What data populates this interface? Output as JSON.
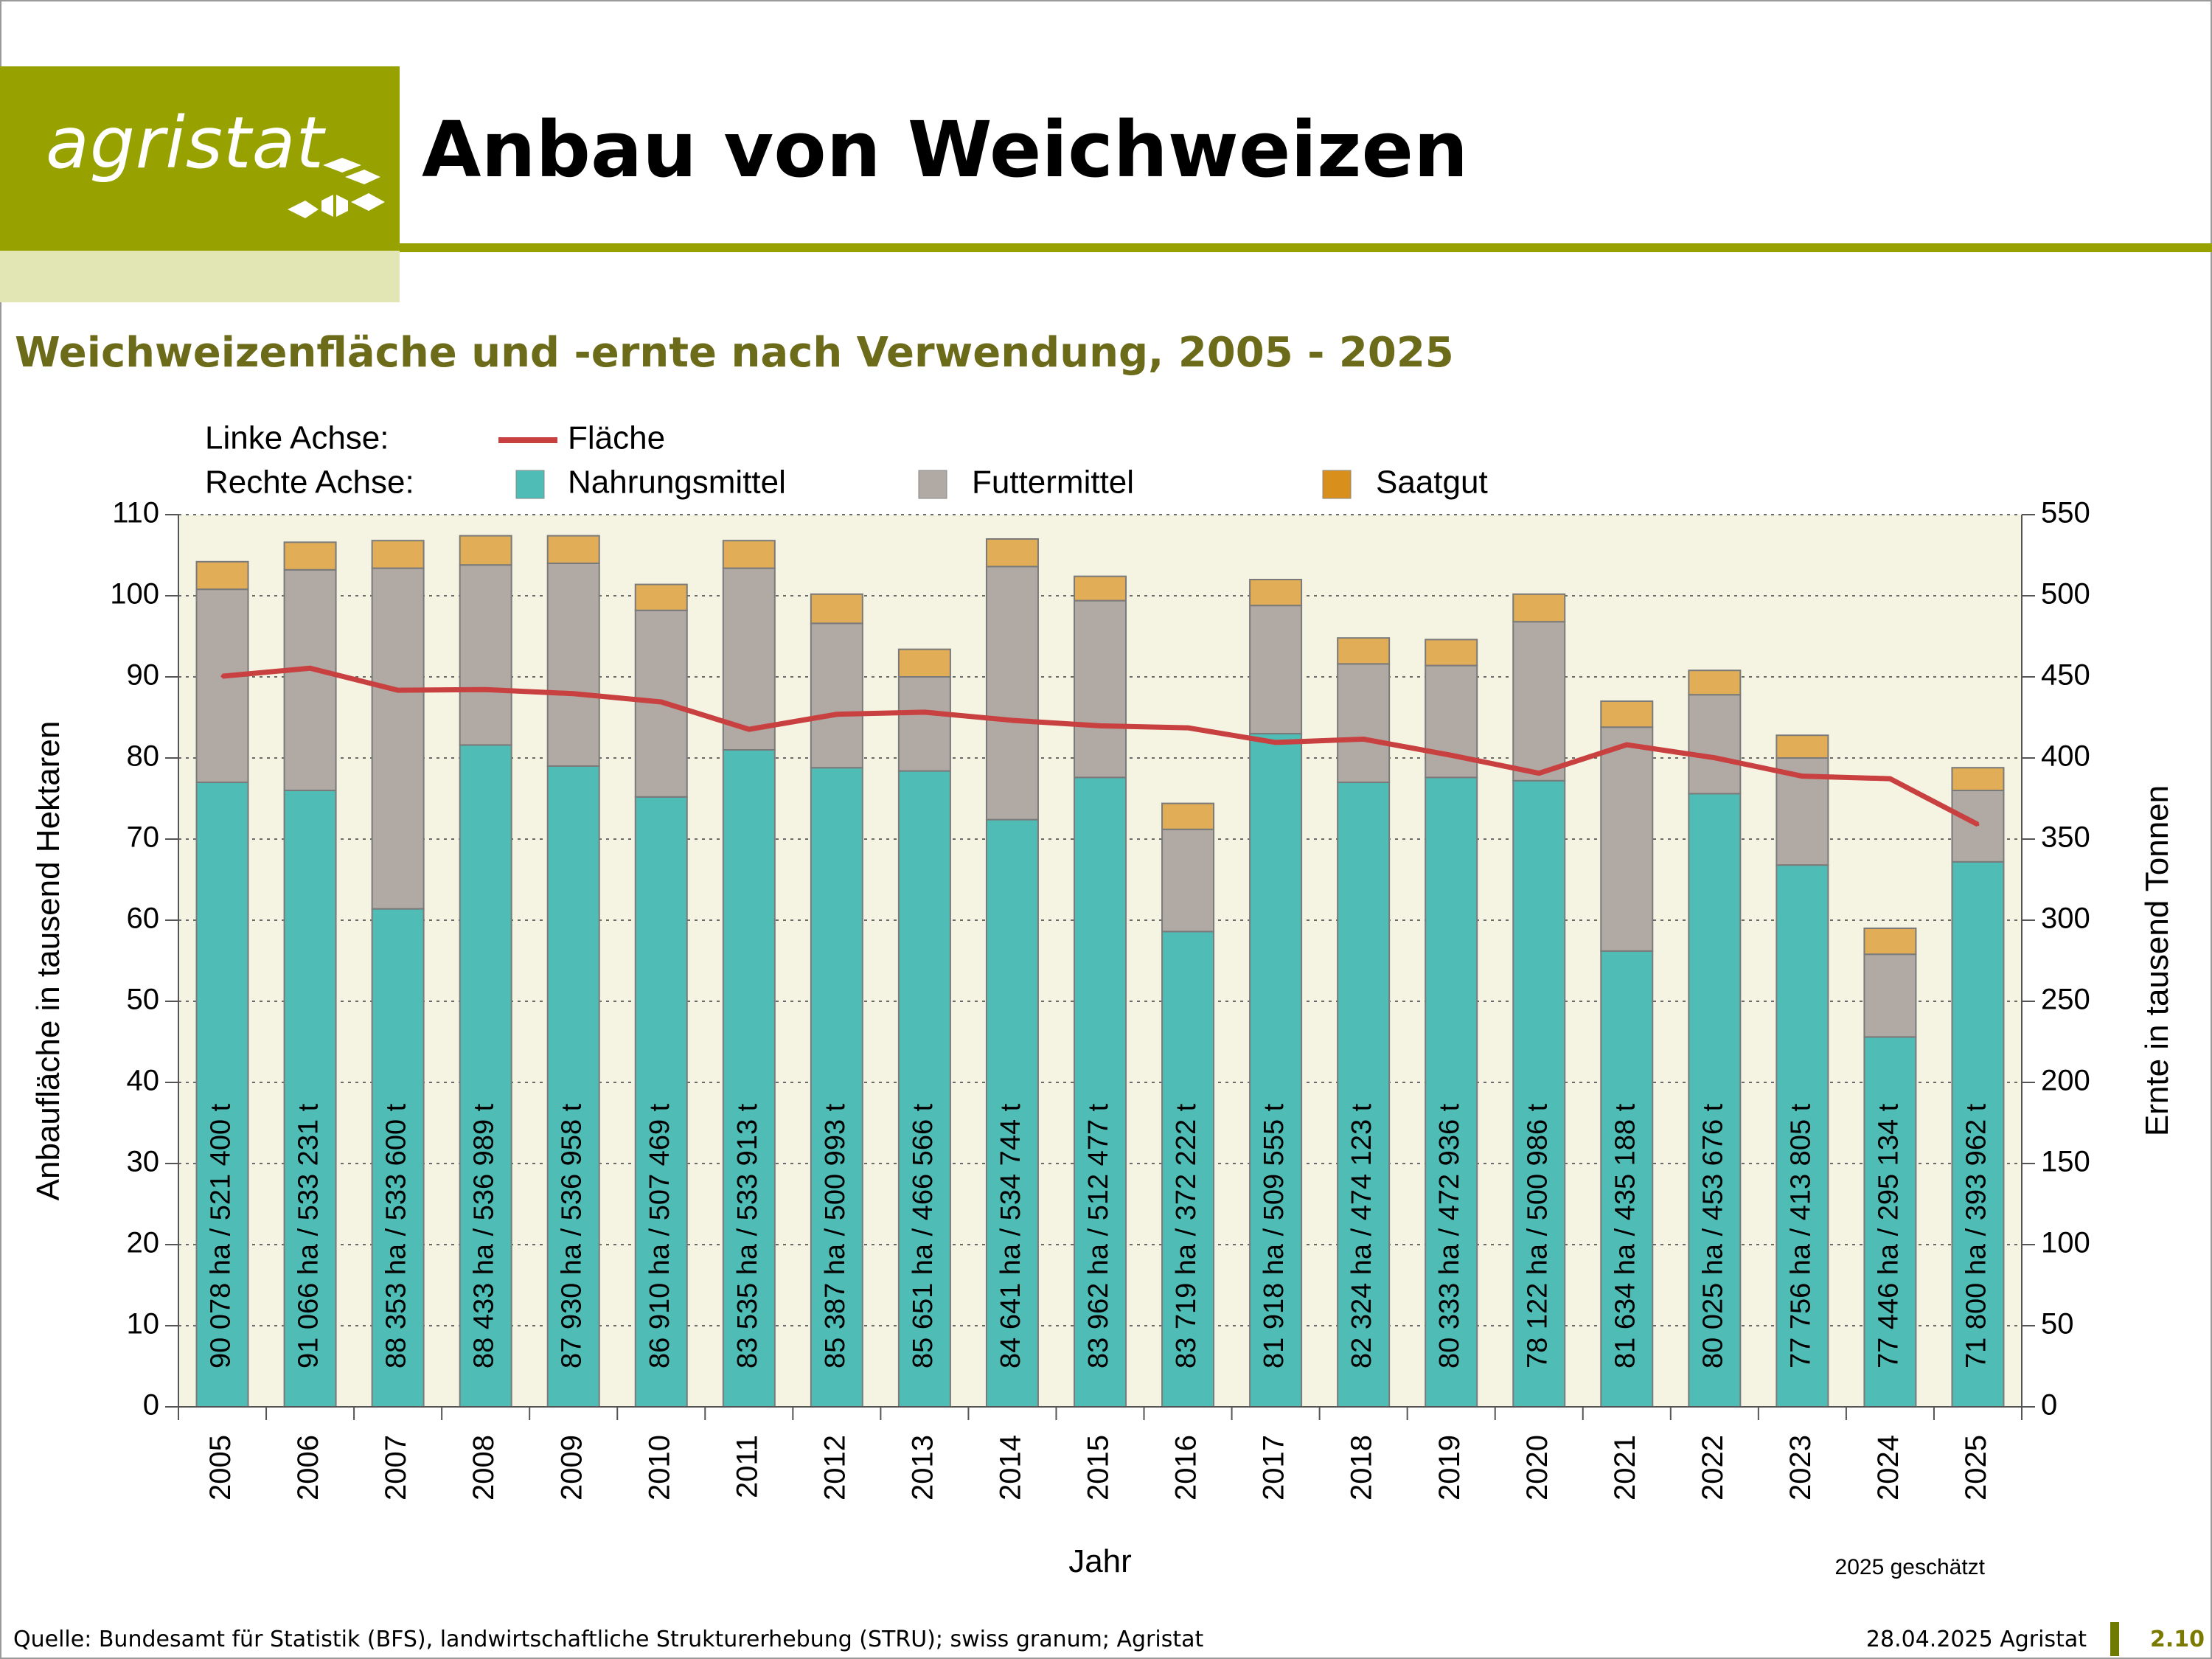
{
  "header": {
    "logo_text": "agristat",
    "title": "Anbau von Weichweizen"
  },
  "subtitle": "Weichweizenfläche und -ernte nach Verwendung, 2005 - 2025",
  "colors": {
    "brand": "#97a200",
    "brand_light": "#e2e5b4",
    "subtitle": "#6b6b1a",
    "nahrungsmittel": "#50bcb6",
    "futtermittel": "#b1a9a4",
    "saatgut": "#e1ad57",
    "flaeche": "#c8403f",
    "plot_bg": "#f5f4e3"
  },
  "icons": [
    "agristat-logo-mark"
  ],
  "chart_data": {
    "type": "bar",
    "stacked": true,
    "legend": {
      "left_axis_label": "Linke Achse:",
      "right_axis_label": "Rechte Achse:",
      "placement": "top"
    },
    "categories": [
      "2005",
      "2006",
      "2007",
      "2008",
      "2009",
      "2010",
      "2011",
      "2012",
      "2013",
      "2014",
      "2015",
      "2016",
      "2017",
      "2018",
      "2019",
      "2020",
      "2021",
      "2022",
      "2023",
      "2024",
      "2025"
    ],
    "series": [
      {
        "name": "Nahrungsmittel",
        "axis": "right",
        "kind": "bar",
        "values": [
          385,
          380,
          307,
          408,
          395,
          376,
          405,
          394,
          392,
          362,
          388,
          293,
          415,
          385,
          388,
          386,
          281,
          378,
          334,
          228,
          336
        ]
      },
      {
        "name": "Futtermittel",
        "axis": "right",
        "kind": "bar",
        "values": [
          119,
          136,
          210,
          111,
          125,
          115,
          112,
          89,
          58,
          156,
          109,
          63,
          79,
          73,
          69,
          98,
          138,
          61,
          66,
          51,
          44
        ]
      },
      {
        "name": "Saatgut",
        "axis": "right",
        "kind": "bar",
        "values": [
          17,
          17,
          17,
          18,
          17,
          16,
          17,
          18,
          17,
          17,
          15,
          16,
          16,
          16,
          16,
          17,
          16,
          15,
          14,
          16,
          14
        ]
      },
      {
        "name": "Fläche",
        "axis": "left",
        "kind": "line",
        "values": [
          90.078,
          91.066,
          88.353,
          88.433,
          87.93,
          86.91,
          83.535,
          85.387,
          85.651,
          84.641,
          83.962,
          83.719,
          81.918,
          82.324,
          80.333,
          78.122,
          81.634,
          80.025,
          77.756,
          77.446,
          71.8
        ]
      }
    ],
    "bar_labels": [
      "90 078 ha / 521 400 t",
      "91 066 ha / 533 231 t",
      "88 353 ha / 533 600 t",
      "88 433 ha / 536 989 t",
      "87 930 ha / 536 958 t",
      "86 910 ha / 507 469 t",
      "83 535 ha / 533 913 t",
      "85 387 ha / 500 993 t",
      "85 651 ha / 466 566 t",
      "84 641 ha / 534 744 t",
      "83 962 ha / 512 477 t",
      "83 719 ha / 372 222 t",
      "81 918 ha / 509 555 t",
      "82 324 ha / 474 123 t",
      "80 333 ha / 472 936 t",
      "78 122 ha / 500 986 t",
      "81 634 ha / 435 188 t",
      "80 025 ha / 453 676 t",
      "77 756 ha / 413 805 t",
      "77 446 ha / 295 134 t",
      "71 800 ha / 393 962 t"
    ],
    "xlabel": "Jahr",
    "ylabel_left": "Anbaufläche in tausend Hektaren",
    "ylabel_right": "Ernte in tausend Tonnen",
    "ylim_left": [
      0,
      110
    ],
    "ylim_right": [
      0,
      550
    ],
    "yticks_left": [
      0,
      10,
      20,
      30,
      40,
      50,
      60,
      70,
      80,
      90,
      100,
      110
    ],
    "yticks_right": [
      0,
      50,
      100,
      150,
      200,
      250,
      300,
      350,
      400,
      450,
      500,
      550
    ],
    "grid": "horizontal dotted",
    "note": "2025 geschätzt"
  },
  "footer": {
    "source": "Quelle: Bundesamt für Statistik (BFS), landwirtschaftliche Strukturerhebung (STRU); swiss granum; Agristat",
    "date": "28.04.2025 Agristat",
    "page_number": "2.10"
  }
}
